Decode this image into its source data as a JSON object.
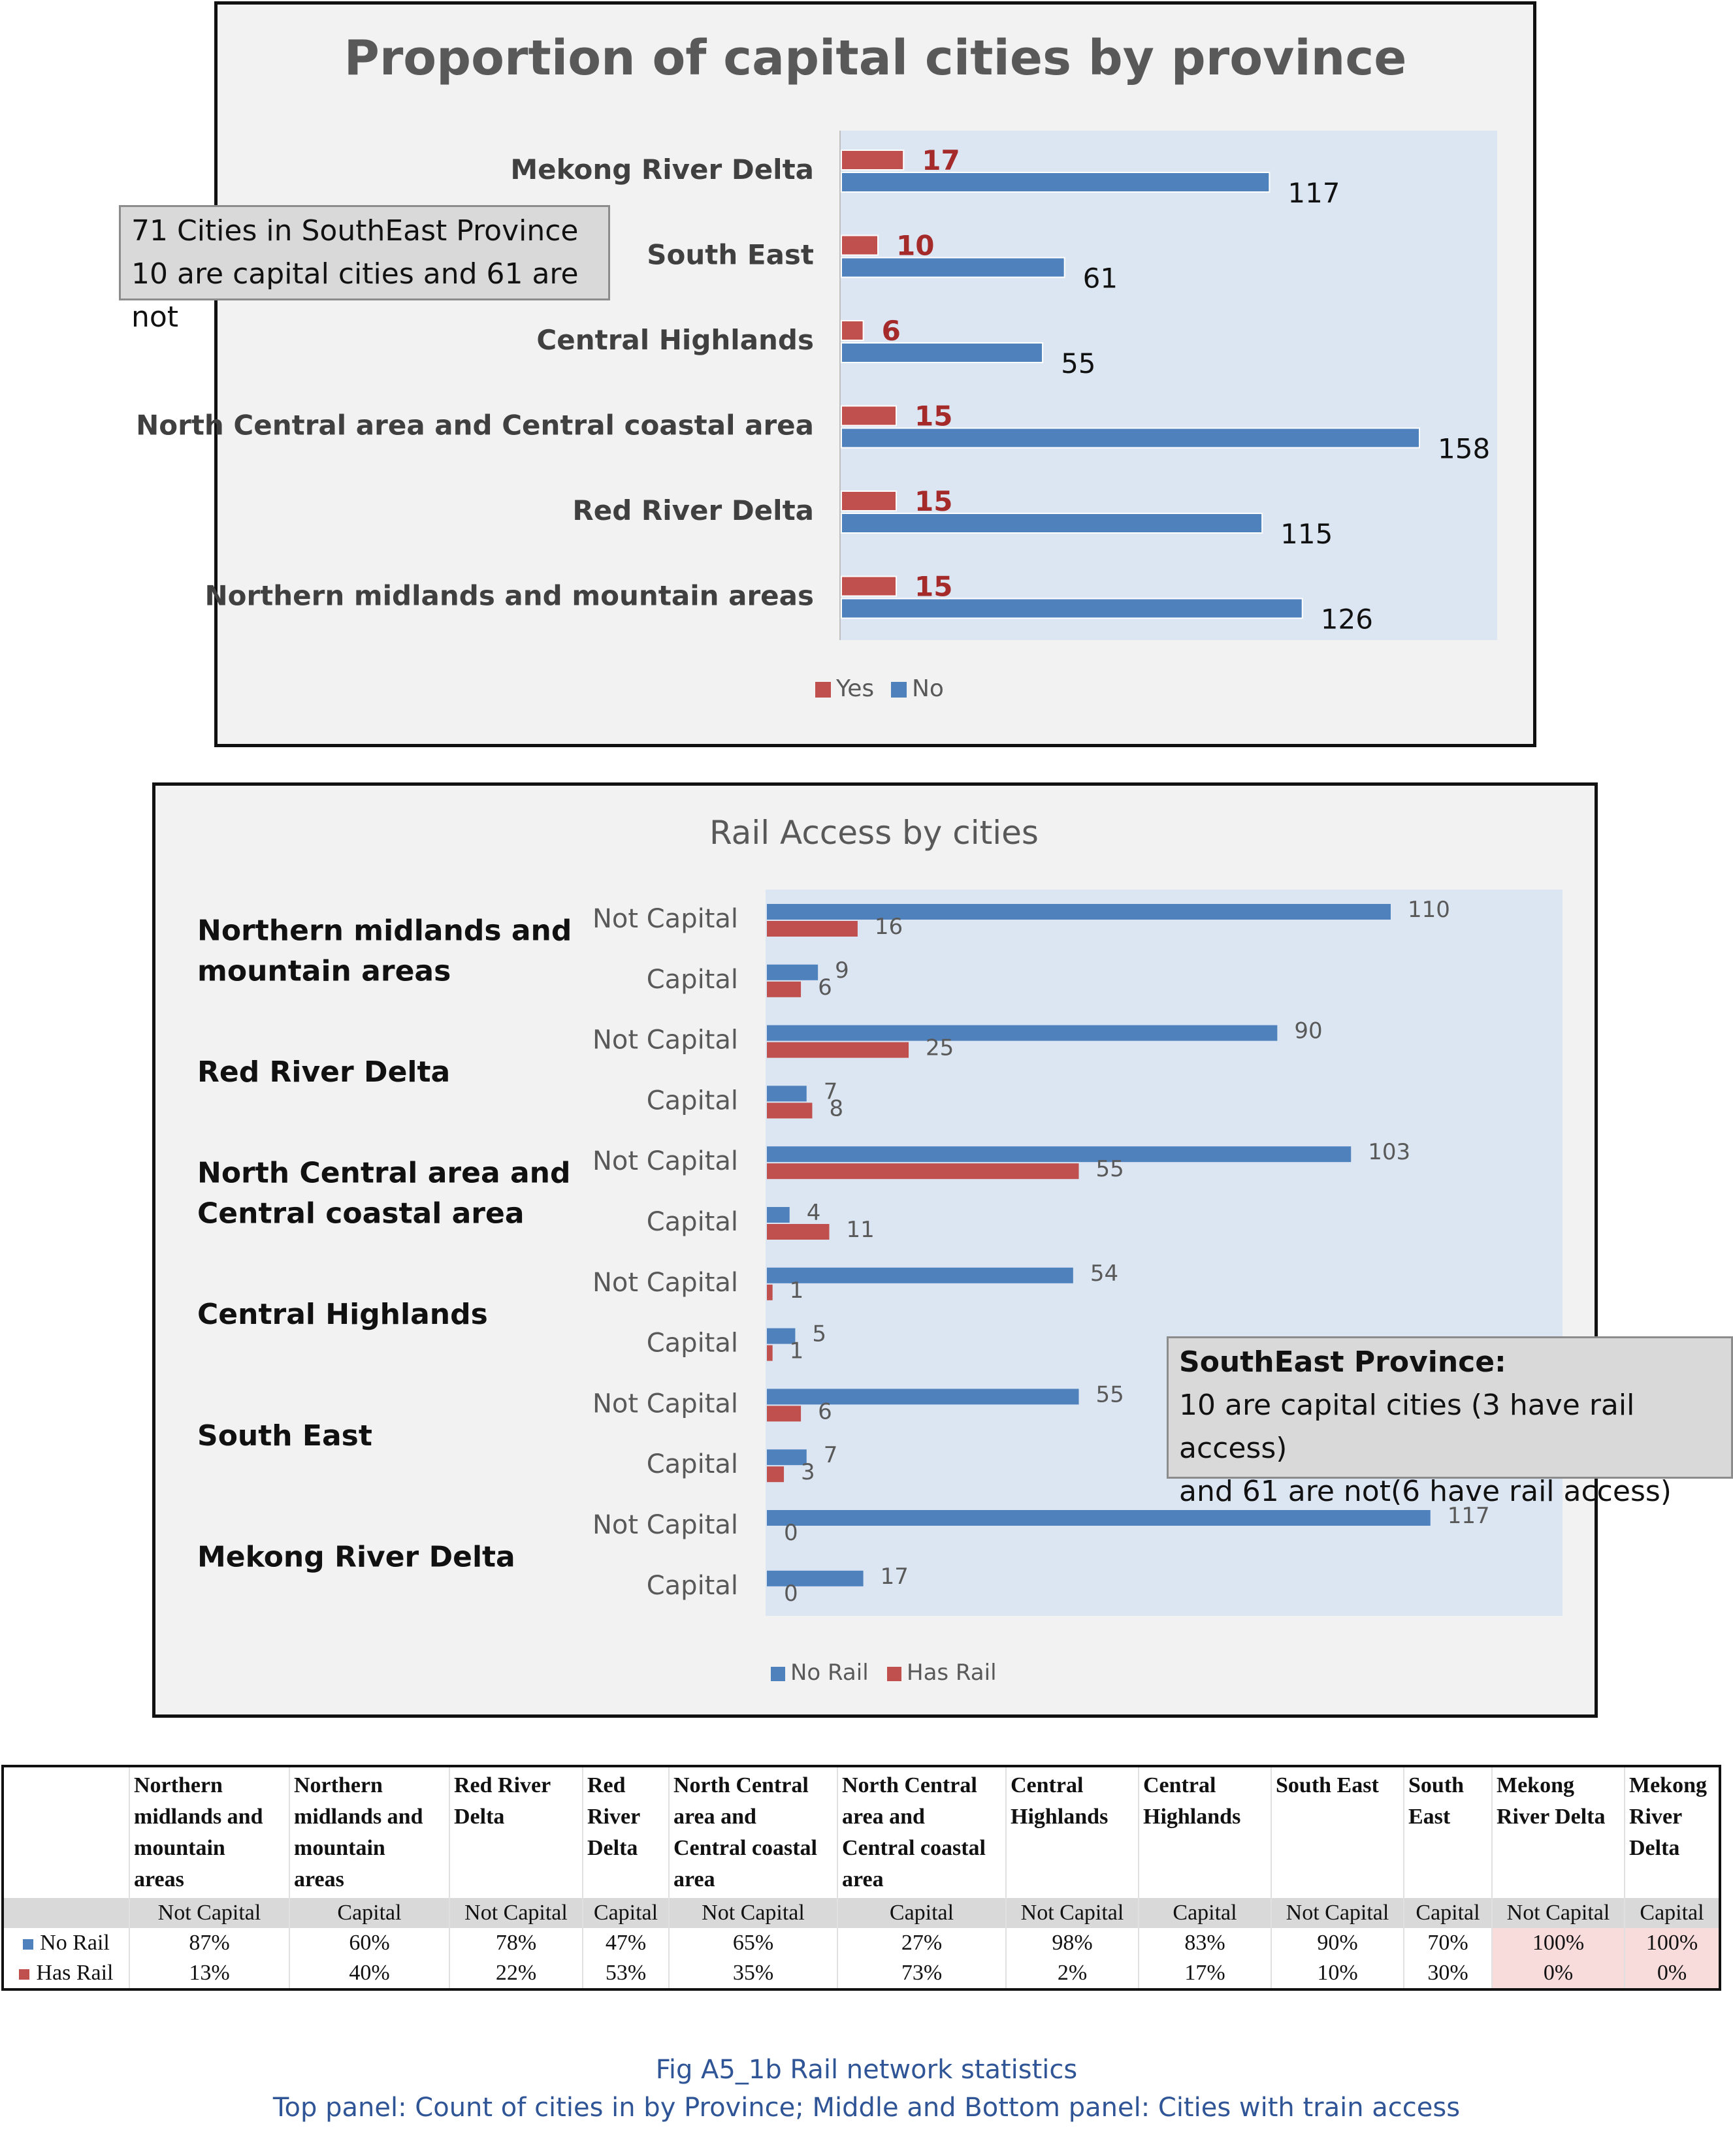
{
  "colors": {
    "yes": "#c0504d",
    "no": "#4f81bd",
    "plot_bg": "#dce6f2"
  },
  "chart_data": [
    {
      "type": "bar",
      "orientation": "horizontal",
      "title": "Proportion of capital cities by province",
      "categories": [
        "Mekong River Delta",
        "South East",
        "Central Highlands",
        "North Central area and Central coastal area",
        "Red River Delta",
        "Northern midlands and mountain areas"
      ],
      "series": [
        {
          "name": "Yes",
          "values": [
            17,
            10,
            6,
            15,
            15,
            15
          ]
        },
        {
          "name": "No",
          "values": [
            117,
            61,
            55,
            158,
            115,
            126
          ]
        }
      ],
      "xlim": [
        0,
        180
      ],
      "legend": "bottom",
      "annotation": [
        "71 Cities in SouthEast Province",
        "10 are capital cities and 61 are not"
      ]
    },
    {
      "type": "bar",
      "orientation": "horizontal",
      "title": "Rail Access by cities",
      "groups": [
        "Northern midlands and mountain areas",
        "Red River Delta",
        "North Central area and Central coastal area",
        "Central Highlands",
        "South East",
        "Mekong River Delta"
      ],
      "group_labels": [
        [
          "Northern midlands and",
          "mountain areas"
        ],
        [
          "Red River Delta"
        ],
        [
          "North Central area and",
          "Central coastal area"
        ],
        [
          "Central Highlands"
        ],
        [
          "South East"
        ],
        [
          "Mekong River Delta"
        ]
      ],
      "subcategories": [
        "Not Capital",
        "Capital"
      ],
      "series": [
        {
          "name": "No Rail",
          "values": [
            110,
            9,
            90,
            7,
            103,
            4,
            54,
            5,
            55,
            7,
            117,
            17
          ]
        },
        {
          "name": "Has Rail",
          "values": [
            16,
            6,
            25,
            8,
            55,
            11,
            1,
            1,
            6,
            3,
            0,
            0
          ]
        }
      ],
      "xlim": [
        0,
        140
      ],
      "legend": "bottom",
      "annotation": {
        "heading": "SouthEast Province:",
        "lines": [
          "10 are capital cities (3 have rail access)",
          "and 61 are not(6 have rail access)"
        ]
      }
    },
    {
      "type": "table",
      "columns": [
        {
          "region": [
            "Northern",
            "midlands and",
            "mountain",
            "areas"
          ],
          "sub": "Not Capital",
          "no_rail": "87%",
          "has_rail": "13%",
          "highlight": false
        },
        {
          "region": [
            "Northern",
            "midlands and",
            "mountain",
            "areas"
          ],
          "sub": "Capital",
          "no_rail": "60%",
          "has_rail": "40%",
          "highlight": false
        },
        {
          "region": [
            "Red River",
            "Delta"
          ],
          "sub": "Not Capital",
          "no_rail": "78%",
          "has_rail": "22%",
          "highlight": false
        },
        {
          "region": [
            "Red",
            "River",
            "Delta"
          ],
          "sub": "Capital",
          "no_rail": "47%",
          "has_rail": "53%",
          "highlight": false
        },
        {
          "region": [
            "North Central",
            "area and",
            "Central coastal",
            "area"
          ],
          "sub": "Not Capital",
          "no_rail": "65%",
          "has_rail": "35%",
          "highlight": false
        },
        {
          "region": [
            "North Central",
            "area and",
            "Central coastal",
            "area"
          ],
          "sub": "Capital",
          "no_rail": "27%",
          "has_rail": "73%",
          "highlight": false
        },
        {
          "region": [
            "Central",
            "Highlands"
          ],
          "sub": "Not Capital",
          "no_rail": "98%",
          "has_rail": "2%",
          "highlight": false
        },
        {
          "region": [
            "Central",
            "Highlands"
          ],
          "sub": "Capital",
          "no_rail": "83%",
          "has_rail": "17%",
          "highlight": false
        },
        {
          "region": [
            "South East"
          ],
          "sub": "Not Capital",
          "no_rail": "90%",
          "has_rail": "10%",
          "highlight": false
        },
        {
          "region": [
            "South",
            "East"
          ],
          "sub": "Capital",
          "no_rail": "70%",
          "has_rail": "30%",
          "highlight": false
        },
        {
          "region": [
            "Mekong",
            "River Delta"
          ],
          "sub": "Not Capital",
          "no_rail": "100%",
          "has_rail": "0%",
          "highlight": true
        },
        {
          "region": [
            "Mekong",
            "River",
            "Delta"
          ],
          "sub": "Capital",
          "no_rail": "100%",
          "has_rail": "0%",
          "highlight": true
        }
      ],
      "row_labels": [
        "No Rail",
        "Has Rail"
      ]
    }
  ],
  "caption": {
    "line1": "Fig A5_1b Rail network statistics",
    "line2": "Top panel: Count of cities in by Province; Middle and Bottom panel: Cities with train access"
  }
}
